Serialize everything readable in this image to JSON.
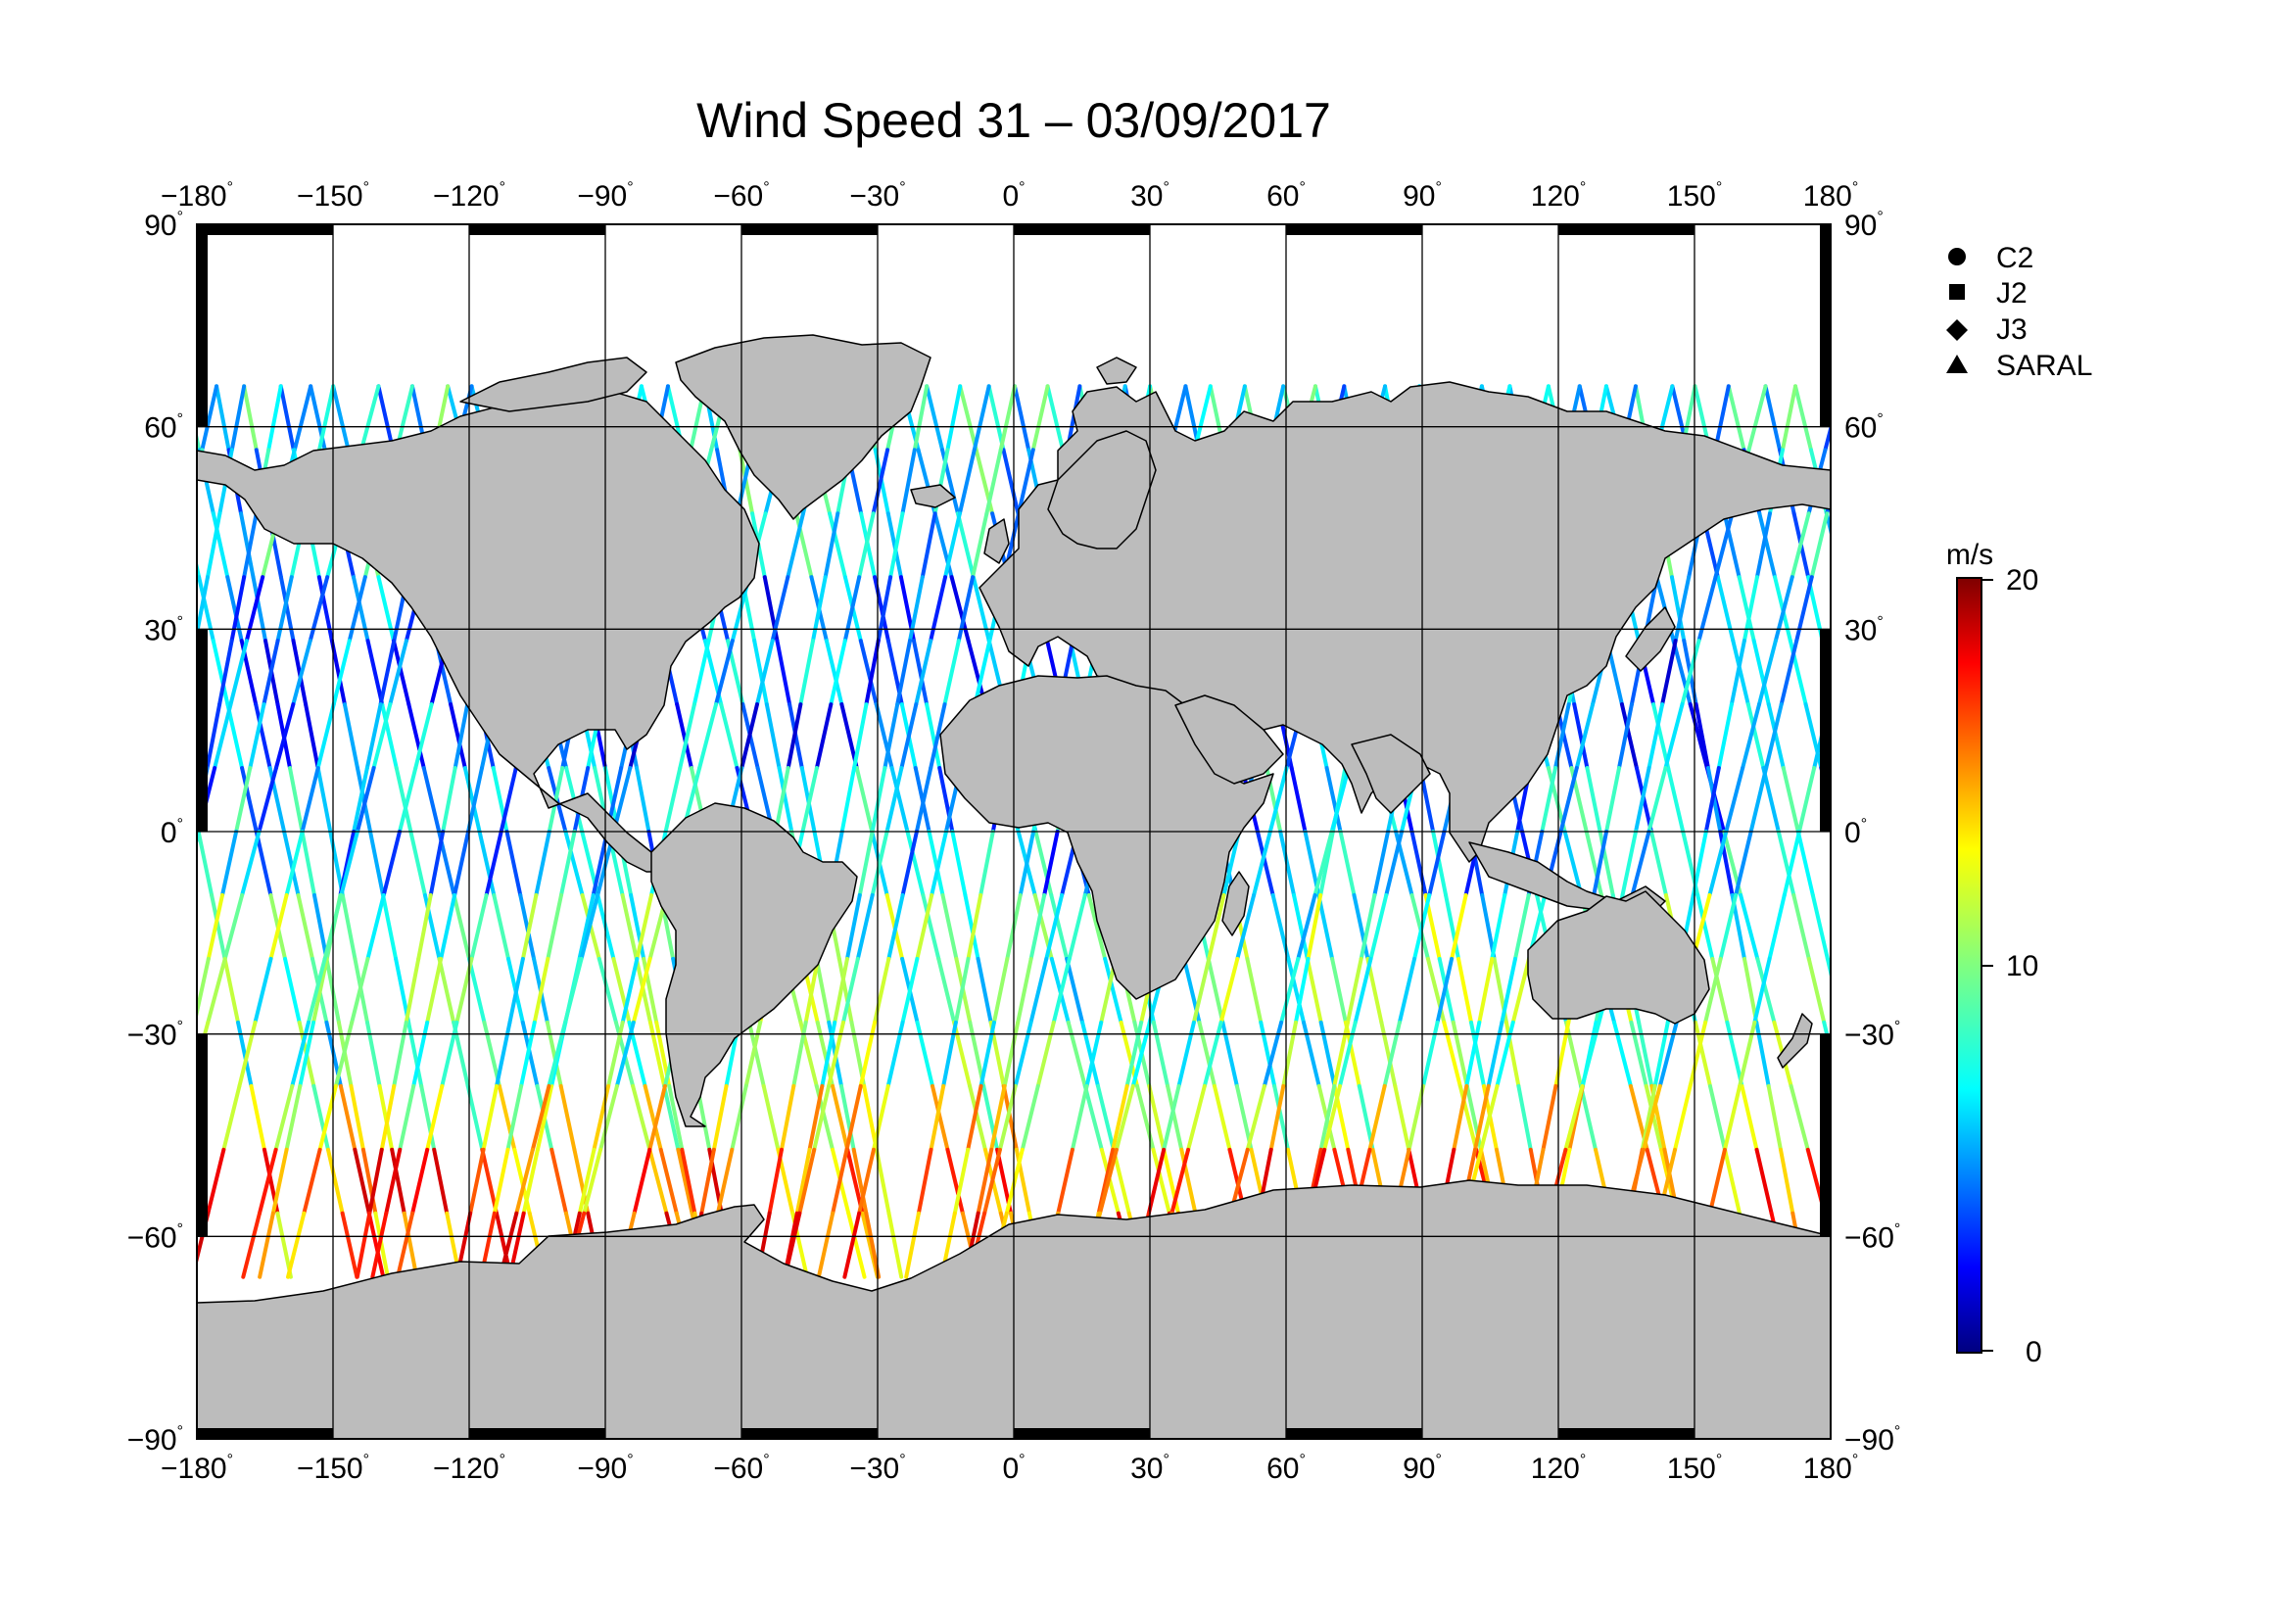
{
  "title": "Wind Speed 31 – 03/09/2017",
  "map": {
    "projection": "equirectangular",
    "lon_ticks": [
      "−180",
      "−150",
      "−120",
      "−90",
      "−60",
      "−30",
      "0",
      "30",
      "60",
      "90",
      "120",
      "150",
      "180"
    ],
    "lat_ticks": [
      "90",
      "60",
      "30",
      "0",
      "−30",
      "−60",
      "−90"
    ],
    "lon_values": [
      -180,
      -150,
      -120,
      -90,
      -60,
      -30,
      0,
      30,
      60,
      90,
      120,
      150,
      180
    ],
    "lat_values": [
      90,
      60,
      30,
      0,
      -30,
      -60,
      -90
    ],
    "degree_symbol": "°",
    "land_color": "#bcbcbc",
    "ocean_color": "#ffffff",
    "grid": true,
    "coverage_lat_range": [
      -66,
      66
    ]
  },
  "legend": {
    "placement": "top-right",
    "items": [
      {
        "label": "C2",
        "marker": "circle"
      },
      {
        "label": "J2",
        "marker": "square"
      },
      {
        "label": "J3",
        "marker": "diamond"
      },
      {
        "label": "SARAL",
        "marker": "triangle"
      }
    ]
  },
  "colorbar": {
    "unit": "m/s",
    "min": 0,
    "max": 20,
    "tick_labels": [
      "20",
      "10",
      "0"
    ],
    "tick_values": [
      20,
      10,
      0
    ],
    "colormap": "jet",
    "stops": [
      "#00007f",
      "#0000ff",
      "#0080ff",
      "#00ffff",
      "#80ff80",
      "#ffff00",
      "#ff8000",
      "#ff0000",
      "#7f0000"
    ]
  },
  "chart_data": {
    "type": "scatter",
    "title": "Wind Speed 31 – 03/09/2017",
    "xlim": [
      -180,
      180
    ],
    "ylim": [
      -90,
      90
    ],
    "value_unit": "m/s",
    "value_range": [
      0,
      20
    ],
    "description_of_pattern": "",
    "regional_wind_speed": [
      {
        "lat_band": [
          40,
          66
        ],
        "value": 7
      },
      {
        "lat_band": [
          10,
          40
        ],
        "value": 5
      },
      {
        "lat_band": [
          -10,
          10
        ],
        "value": 6
      },
      {
        "lat_band": [
          -35,
          -10
        ],
        "value": 9
      },
      {
        "lat_band": [
          -50,
          -35
        ],
        "value": 12
      },
      {
        "lat_band": [
          -66,
          -50
        ],
        "value": 15
      }
    ]
  }
}
